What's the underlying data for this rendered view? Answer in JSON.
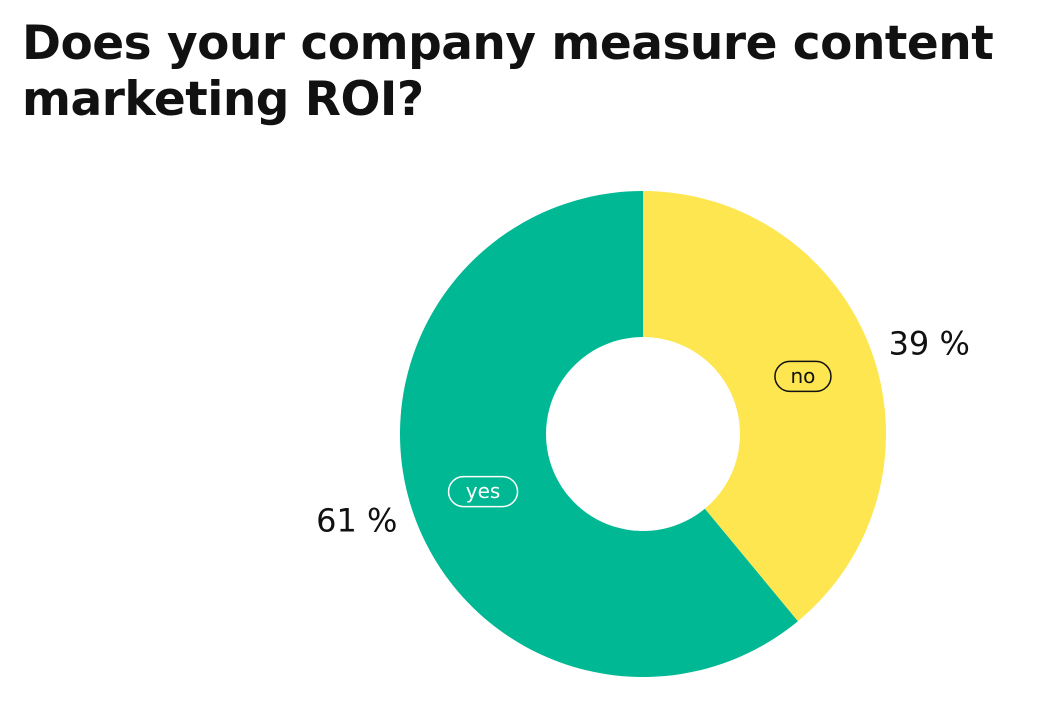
{
  "colors": {
    "yes": "#00b893",
    "no": "#fde64f",
    "background": "#ffffff",
    "text": "#111111"
  },
  "chart_data": {
    "type": "pie",
    "title": "Does your company measure content marketing ROI?",
    "donut": true,
    "start": "top",
    "direction": "clockwise",
    "slices": [
      {
        "label": "no",
        "value": 39,
        "value_label": "39 %",
        "color": "#fde64f",
        "label_color": "#111111"
      },
      {
        "label": "yes",
        "value": 61,
        "value_label": "61 %",
        "color": "#00b893",
        "label_color": "#ffffff"
      }
    ]
  }
}
